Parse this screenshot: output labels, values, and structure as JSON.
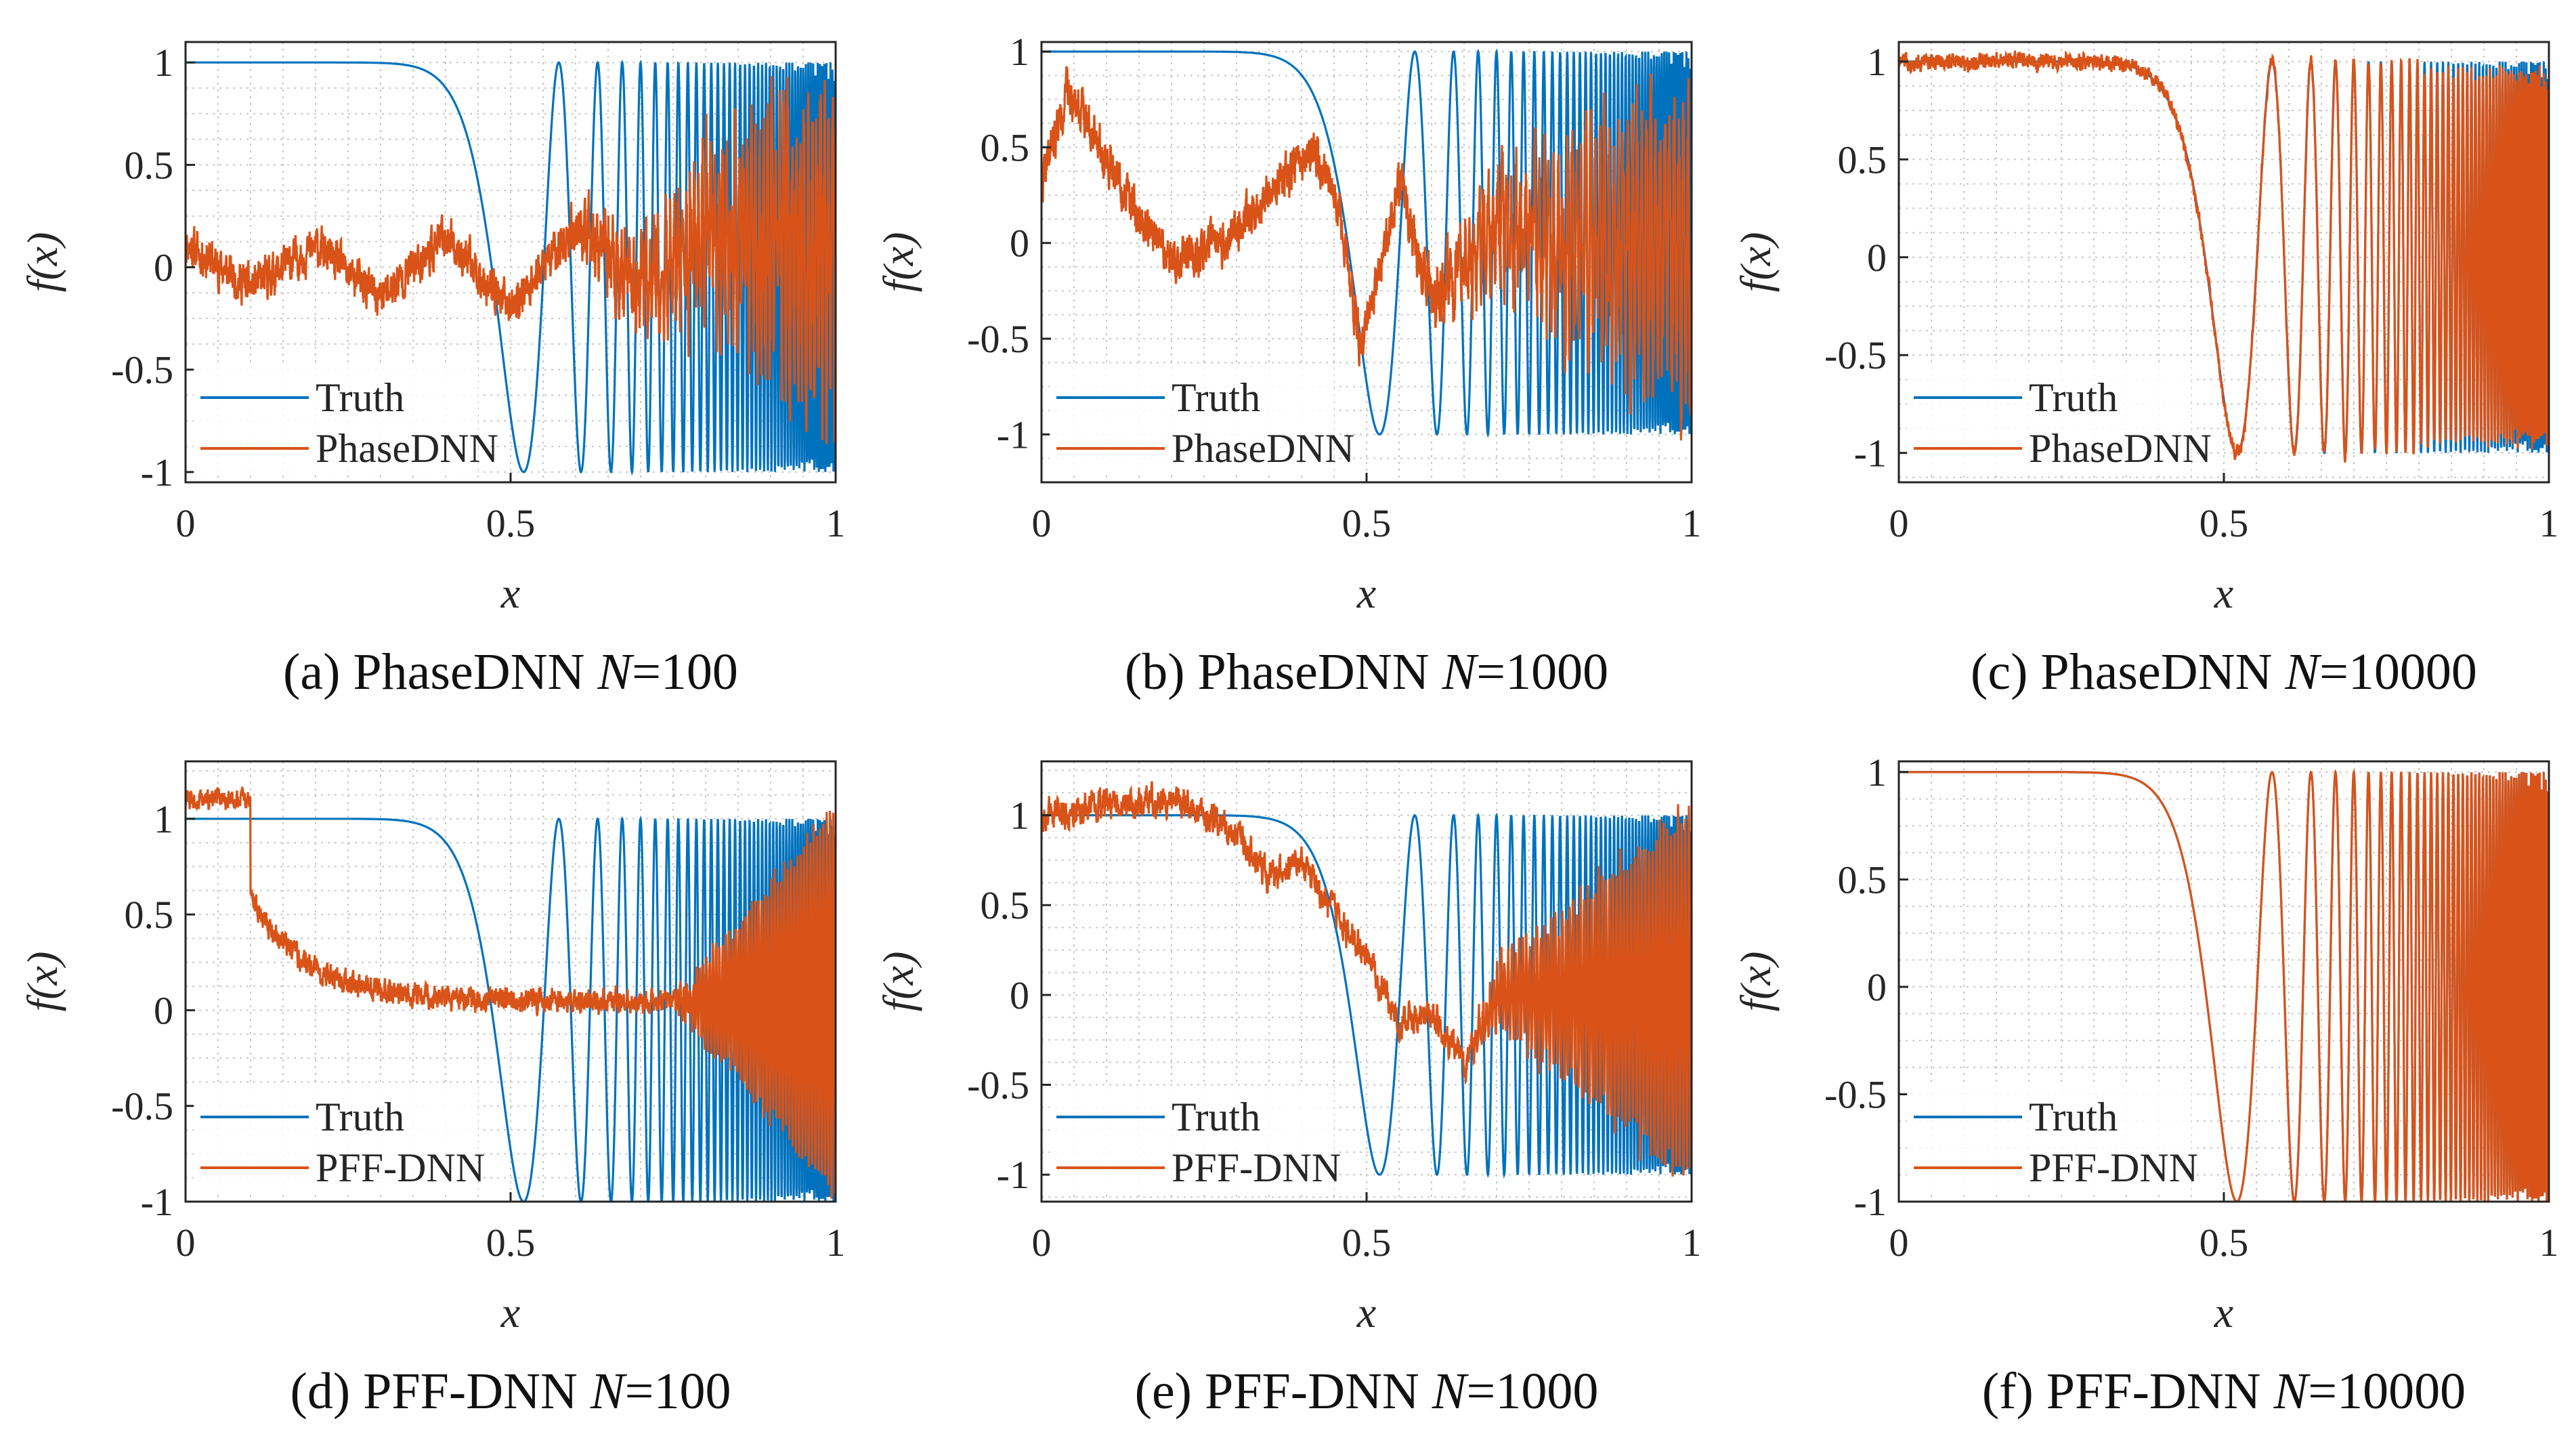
{
  "colors": {
    "truth": "#0072BD",
    "prediction": "#D95319",
    "axis": "#262626",
    "grid": "#c8c8c8",
    "background": "#ffffff"
  },
  "common": {
    "xlabel": "x",
    "ylabel": "f(x)",
    "xticks": [
      "0",
      "0.5",
      "1"
    ],
    "yticks": [
      "1",
      "0.5",
      "0",
      "-0.5",
      "-1"
    ]
  },
  "chart_data": [
    {
      "type": "line",
      "panel": "a",
      "title": "(a) PhaseDNN N=100",
      "caption": {
        "prefix": "(a) PhaseDNN ",
        "n_symbol": "N",
        "n_value": "=100"
      },
      "legend": [
        "Truth",
        "PhaseDNN"
      ],
      "xlabel": "x",
      "ylabel": "f(x)",
      "xlim": [
        0,
        1
      ],
      "ylim": [
        -1.05,
        1.1
      ],
      "series": [
        {
          "name": "Truth",
          "function": "cos(pi*(x/0.52)^p) blended, flat 1 for x<0.35, oscillates +/-1 with increasing frequency for x>0.5"
        },
        {
          "name": "PhaseDNN",
          "description": "noisy, ~0 to 0.25 over [0,0.5], grows to amplitude ~0.7 near x=1"
        }
      ]
    },
    {
      "type": "line",
      "panel": "b",
      "title": "(b) PhaseDNN N=1000",
      "caption": {
        "prefix": "(b) PhaseDNN ",
        "n_symbol": "N",
        "n_value": "=1000"
      },
      "legend": [
        "Truth",
        "PhaseDNN"
      ],
      "xlabel": "x",
      "ylabel": "f(x)",
      "xlim": [
        0,
        1
      ],
      "ylim": [
        -1.25,
        1.05
      ],
      "series": [
        {
          "name": "Truth",
          "function": "same reference function"
        },
        {
          "name": "PhaseDNN",
          "description": "noisy, peaks ~1 near x=0.05, ~0.5 near x=0.42, dips -0.6 near x=0.49"
        }
      ]
    },
    {
      "type": "line",
      "panel": "c",
      "title": "(c) PhaseDNN N=10000",
      "caption": {
        "prefix": "(c) PhaseDNN ",
        "n_symbol": "N",
        "n_value": "=10000"
      },
      "legend": [
        "Truth",
        "PhaseDNN"
      ],
      "xlabel": "x",
      "ylabel": "f(x)",
      "xlim": [
        0,
        1
      ],
      "ylim": [
        -1.15,
        1.1
      ],
      "series": [
        {
          "name": "Truth",
          "function": "same reference function"
        },
        {
          "name": "PhaseDNN",
          "description": "tracks truth with small noise"
        }
      ]
    },
    {
      "type": "line",
      "panel": "d",
      "title": "(d) PFF-DNN N=100",
      "caption": {
        "prefix": "(d) PFF-DNN ",
        "n_symbol": "N",
        "n_value": "=100"
      },
      "legend": [
        "Truth",
        "PFF-DNN"
      ],
      "xlabel": "x",
      "ylabel": "f(x)",
      "xlim": [
        0,
        1
      ],
      "ylim": [
        -1,
        1.3
      ],
      "series": [
        {
          "name": "Truth",
          "function": "same reference function"
        },
        {
          "name": "PFF-DNN",
          "description": "~1.1 on [0,0.1], decays to ~0.05, grows to +/-1 near x=1"
        }
      ]
    },
    {
      "type": "line",
      "panel": "e",
      "title": "(e) PFF-DNN N=1000",
      "caption": {
        "prefix": "(e) PFF-DNN ",
        "n_symbol": "N",
        "n_value": "=1000"
      },
      "legend": [
        "Truth",
        "PFF-DNN"
      ],
      "xlabel": "x",
      "ylabel": "f(x)",
      "xlim": [
        0,
        1
      ],
      "ylim": [
        -1.15,
        1.3
      ],
      "series": [
        {
          "name": "Truth",
          "function": "same reference function"
        },
        {
          "name": "PFF-DNN",
          "description": "~1 to 1.2 on [0,0.3], descends to ~0 by x=0.6, oscillates +/-1 near x=1"
        }
      ]
    },
    {
      "type": "line",
      "panel": "f",
      "title": "(f) PFF-DNN N=10000",
      "caption": {
        "prefix": "(f) PFF-DNN ",
        "n_symbol": "N",
        "n_value": "=10000"
      },
      "legend": [
        "Truth",
        "PFF-DNN"
      ],
      "xlabel": "x",
      "ylabel": "f(x)",
      "xlim": [
        0,
        1
      ],
      "ylim": [
        -1,
        1.05
      ],
      "series": [
        {
          "name": "Truth",
          "function": "same reference function"
        },
        {
          "name": "PFF-DNN",
          "description": "overlaps truth almost exactly"
        }
      ]
    }
  ]
}
